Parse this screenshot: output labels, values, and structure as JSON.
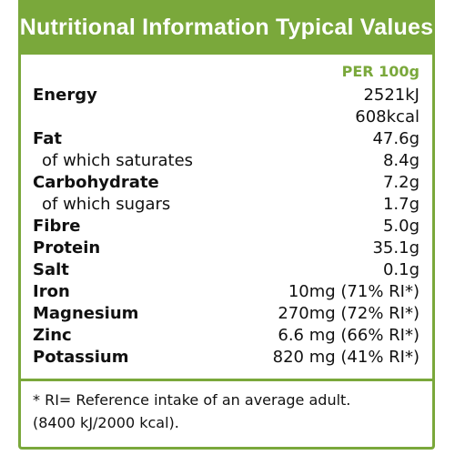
{
  "header": {
    "title": "Nutritional Information Typical Values"
  },
  "column_header": "PER 100g",
  "rows": [
    {
      "label": "Energy",
      "values": [
        "2521kJ",
        "608kcal"
      ],
      "sub": false
    },
    {
      "label": "Fat",
      "values": [
        "47.6g"
      ],
      "sub": false
    },
    {
      "label": "of which saturates",
      "values": [
        "8.4g"
      ],
      "sub": true
    },
    {
      "label": "Carbohydrate",
      "values": [
        "7.2g"
      ],
      "sub": false
    },
    {
      "label": "of which sugars",
      "values": [
        "1.7g"
      ],
      "sub": true
    },
    {
      "label": "Fibre",
      "values": [
        "5.0g"
      ],
      "sub": false
    },
    {
      "label": "Protein",
      "values": [
        "35.1g"
      ],
      "sub": false
    },
    {
      "label": "Salt",
      "values": [
        "0.1g"
      ],
      "sub": false
    },
    {
      "label": "Iron",
      "values": [
        "10mg (71% RI*)"
      ],
      "sub": false
    },
    {
      "label": "Magnesium",
      "values": [
        "270mg (72% RI*)"
      ],
      "sub": false
    },
    {
      "label": "Zinc",
      "values": [
        "6.6 mg (66% RI*)"
      ],
      "sub": false
    },
    {
      "label": "Potassium",
      "values": [
        "820 mg (41% RI*)"
      ],
      "sub": false
    }
  ],
  "footnote": {
    "line1": "* RI= Reference intake of an average adult.",
    "line2": "(8400 kJ/2000 kcal)."
  },
  "colors": {
    "accent": "#7aa83b",
    "text": "#111111",
    "background": "#ffffff"
  }
}
